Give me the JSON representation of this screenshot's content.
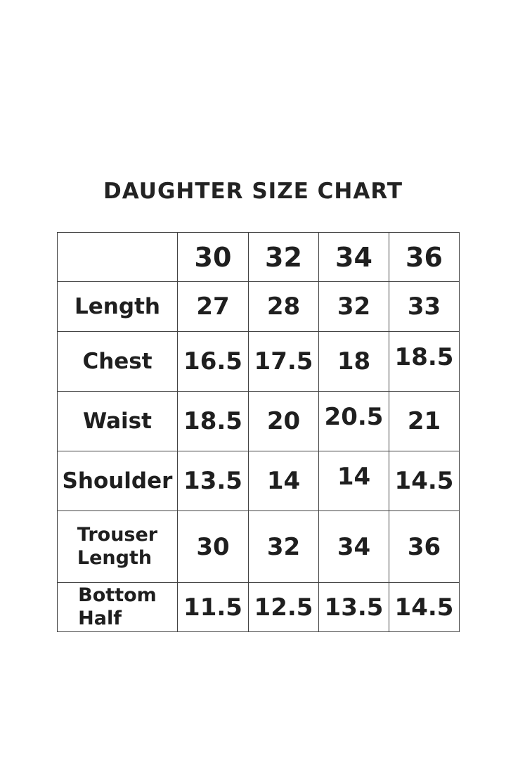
{
  "page": {
    "background": "#ffffff",
    "text_color": "#1f1f1f",
    "border_color": "#424242"
  },
  "chart_data": {
    "type": "table",
    "title": "DAUGHTER SIZE CHART",
    "columns": [
      "",
      "30",
      "32",
      "34",
      "36"
    ],
    "rows": [
      [
        "Length",
        "27",
        "28",
        "32",
        "33"
      ],
      [
        "Chest",
        "16.5",
        "17.5",
        "18",
        "18.5"
      ],
      [
        "Waist",
        "18.5",
        "20",
        "20.5",
        "21"
      ],
      [
        "Shoulder",
        "13.5",
        "14",
        "14",
        "14.5"
      ],
      [
        "Trouser Length",
        "30",
        "32",
        "34",
        "36"
      ],
      [
        "Bottom Half",
        "11.5",
        "12.5",
        "13.5",
        "14.5"
      ]
    ]
  }
}
